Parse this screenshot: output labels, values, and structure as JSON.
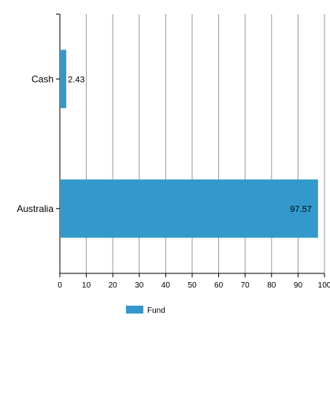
{
  "colors": {
    "bar": "#3399cc",
    "grid": "#999999",
    "axis": "#000000"
  },
  "chart_data": {
    "type": "bar",
    "orientation": "horizontal",
    "categories": [
      "Cash",
      "Australia"
    ],
    "series": [
      {
        "name": "Fund",
        "values": [
          2.43,
          97.57
        ]
      }
    ],
    "xlim": [
      0,
      100
    ],
    "xticks": [
      "0",
      "10",
      "20",
      "30",
      "40",
      "50",
      "60",
      "70",
      "80",
      "90",
      "100"
    ],
    "data_labels": [
      "2.43",
      "97.57"
    ],
    "grid": true,
    "legend": {
      "position": "bottom",
      "entries": [
        "Fund"
      ]
    }
  }
}
